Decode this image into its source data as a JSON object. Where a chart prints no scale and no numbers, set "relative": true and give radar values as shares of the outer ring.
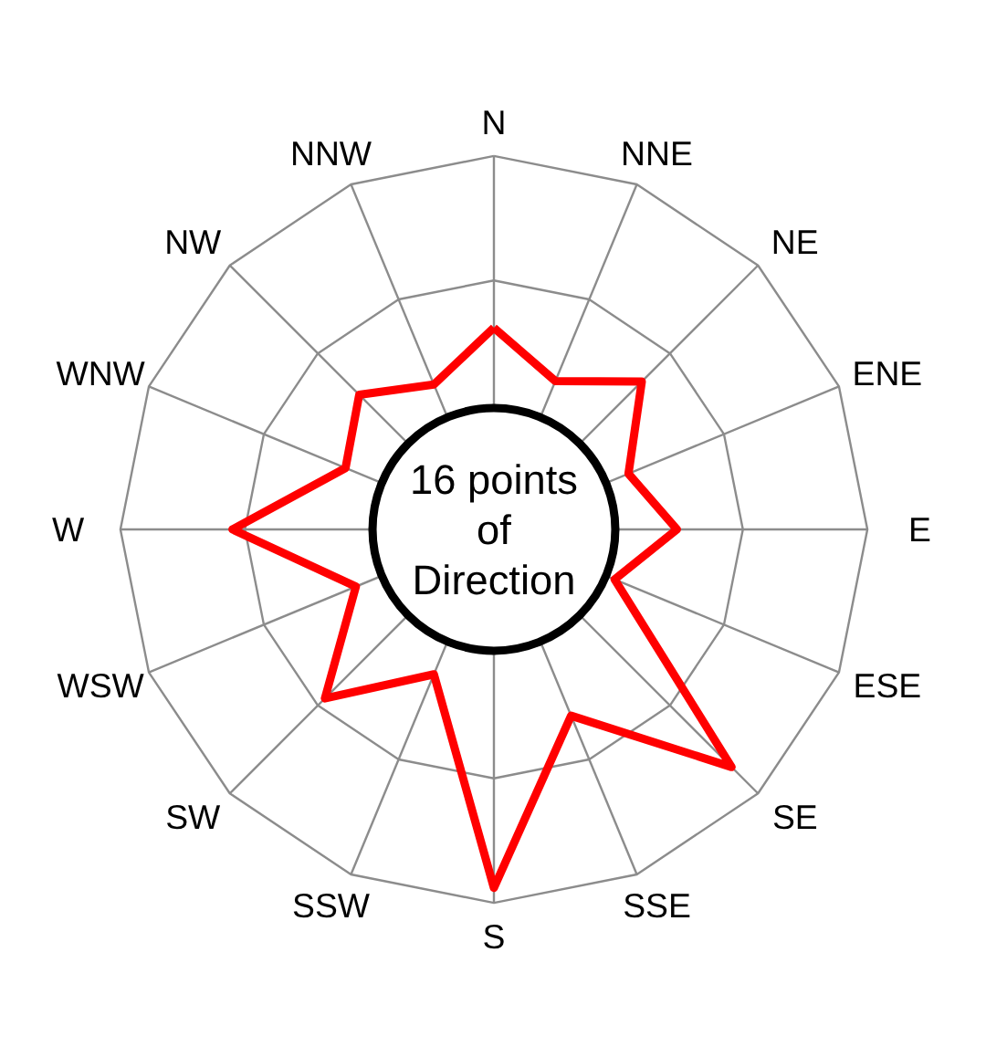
{
  "chart_data": {
    "type": "radar",
    "relative": true,
    "grid": true,
    "marker": "none",
    "line_style": "solid",
    "categories": [
      "N",
      "NNE",
      "NE",
      "ENE",
      "E",
      "ESE",
      "SE",
      "SSE",
      "S",
      "SSW",
      "SW",
      "WSW",
      "W",
      "WNW",
      "NW",
      "NNW"
    ],
    "series": [
      {
        "color": "#ff0000",
        "values": [
          0.54,
          0.43,
          0.56,
          0.39,
          0.49,
          0.35,
          0.9,
          0.54,
          0.96,
          0.42,
          0.64,
          0.4,
          0.7,
          0.43,
          0.51,
          0.42
        ]
      }
    ],
    "annotations": [
      "16 points of Direction"
    ]
  }
}
